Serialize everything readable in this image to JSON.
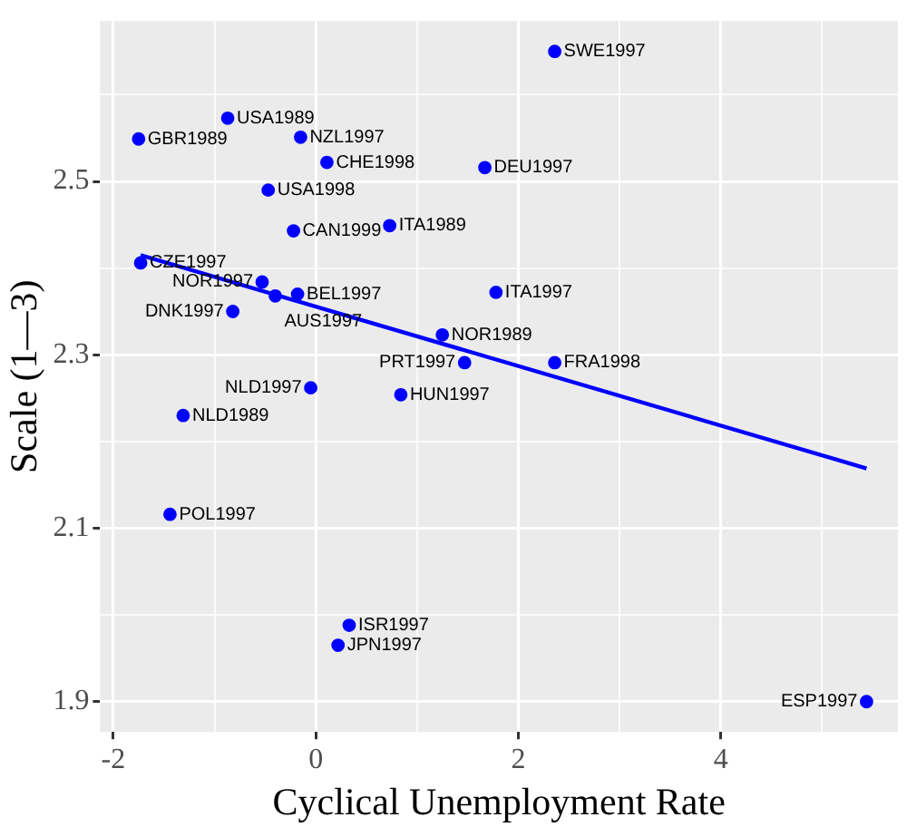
{
  "chart_data": {
    "type": "scatter",
    "xlabel": "Cyclical Unemployment Rate",
    "ylabel": "Scale (1—3)",
    "xlim": [
      -2.13,
      5.75
    ],
    "ylim": [
      1.865,
      2.685
    ],
    "xticks": [
      -2,
      {
        "value": -1,
        "label": null
      },
      0,
      {
        "value": 1,
        "label": null
      },
      2,
      {
        "value": 3,
        "label": null
      },
      4,
      {
        "value": 5,
        "label": null
      }
    ],
    "yticks": [
      1.9,
      {
        "value": 2.0,
        "label": null
      },
      2.1,
      {
        "value": 2.2,
        "label": null
      },
      2.3,
      {
        "value": 2.4,
        "label": null
      },
      2.5,
      {
        "value": 2.6,
        "label": null
      }
    ],
    "grid": true,
    "series": [
      {
        "type": "scatter",
        "marker": "circle",
        "color": "#0000ff",
        "x": [
          2.36,
          -0.87,
          -1.75,
          -0.15,
          0.11,
          1.67,
          -0.47,
          -0.22,
          0.73,
          -1.73,
          -0.53,
          -0.4,
          -0.18,
          -0.82,
          1.78,
          1.25,
          1.47,
          2.36,
          -0.05,
          0.84,
          -1.31,
          -1.44,
          0.33,
          0.22,
          5.44
        ],
        "values": [
          2.65,
          2.573,
          2.549,
          2.551,
          2.522,
          2.516,
          2.49,
          2.443,
          2.449,
          2.406,
          2.384,
          2.368,
          2.37,
          2.35,
          2.372,
          2.323,
          2.291,
          2.291,
          2.262,
          2.254,
          2.23,
          2.116,
          1.988,
          1.965,
          1.9
        ]
      },
      {
        "type": "line",
        "color": "#0000ff",
        "x": [
          -1.73,
          5.44
        ],
        "values": [
          2.415,
          2.169
        ]
      }
    ],
    "annotations": [
      {
        "text": "SWE1997",
        "x": 2.36,
        "y": 2.65
      },
      {
        "text": "USA1989",
        "x": -0.87,
        "y": 2.573
      },
      {
        "text": "GBR1989",
        "x": -1.75,
        "y": 2.549
      },
      {
        "text": "NZL1997",
        "x": -0.15,
        "y": 2.551
      },
      {
        "text": "CHE1998",
        "x": 0.11,
        "y": 2.522
      },
      {
        "text": "DEU1997",
        "x": 1.67,
        "y": 2.516
      },
      {
        "text": "USA1998",
        "x": -0.47,
        "y": 2.49
      },
      {
        "text": "CAN1999",
        "x": -0.22,
        "y": 2.443
      },
      {
        "text": "ITA1989",
        "x": 0.73,
        "y": 2.449
      },
      {
        "text": "CZE1997",
        "x": -1.73,
        "y": 2.406
      },
      {
        "text": "NOR1997",
        "x": -0.53,
        "y": 2.384
      },
      {
        "text": "AUS1997",
        "x": -0.4,
        "y": 2.368
      },
      {
        "text": "BEL1997",
        "x": -0.18,
        "y": 2.37
      },
      {
        "text": "DNK1997",
        "x": -0.82,
        "y": 2.35
      },
      {
        "text": "ITA1997",
        "x": 1.78,
        "y": 2.372
      },
      {
        "text": "NOR1989",
        "x": 1.25,
        "y": 2.323
      },
      {
        "text": "PRT1997",
        "x": 1.47,
        "y": 2.291
      },
      {
        "text": "FRA1998",
        "x": 2.36,
        "y": 2.291
      },
      {
        "text": "NLD1997",
        "x": -0.05,
        "y": 2.262
      },
      {
        "text": "HUN1997",
        "x": 0.84,
        "y": 2.254
      },
      {
        "text": "NLD1989",
        "x": -1.31,
        "y": 2.23
      },
      {
        "text": "POL1997",
        "x": -1.44,
        "y": 2.116
      },
      {
        "text": "ISR1997",
        "x": 0.33,
        "y": 1.988
      },
      {
        "text": "JPN1997",
        "x": 0.22,
        "y": 1.965
      },
      {
        "text": "ESP1997",
        "x": 5.44,
        "y": 1.9
      }
    ]
  }
}
